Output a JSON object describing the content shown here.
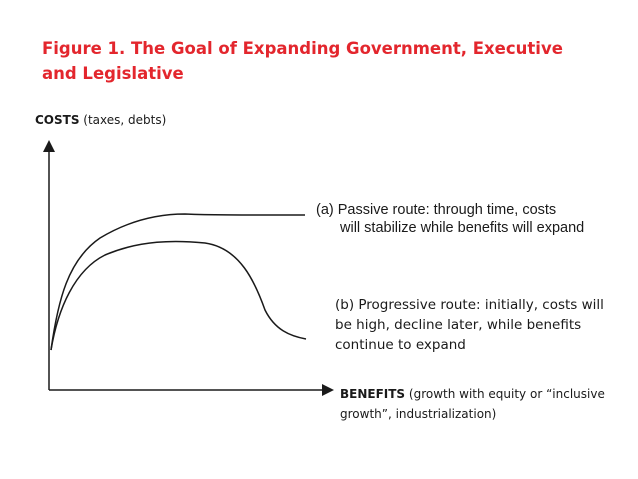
{
  "figure": {
    "title": "Figure 1. The Goal of Expanding Government, Executive and Legislative",
    "colors": {
      "title": "#e3262d",
      "lines": "#1a1a1a"
    }
  },
  "y_axis": {
    "label_bold": "COSTS",
    "label_rest": " (taxes, debts)"
  },
  "x_axis": {
    "label_bold": "BENEFITS",
    "label_rest": " (growth with equity or “inclusive growth”,  industrialization)"
  },
  "annotations": {
    "passive": {
      "line1": "(a) Passive route: through time, costs",
      "line2": "will stabilize while benefits will expand"
    },
    "progressive": {
      "text": "(b) Progressive route: initially, costs will be high, decline later, while benefits continue to expand"
    }
  }
}
